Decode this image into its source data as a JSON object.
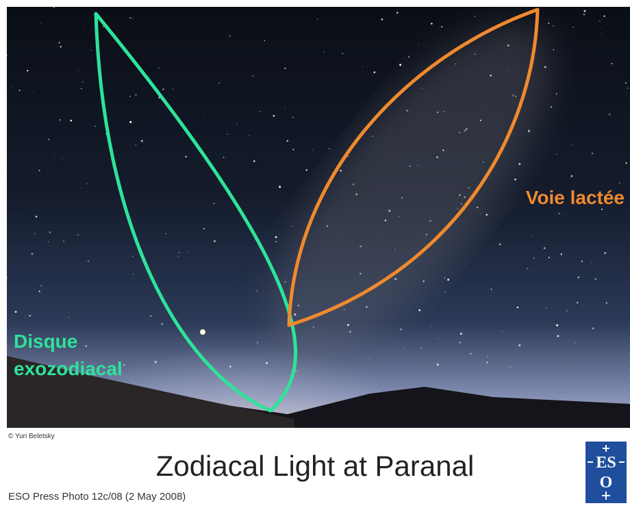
{
  "annotations": {
    "milky_way": "Voie lactée",
    "exozodiacal": [
      "Disque",
      "exozodiacal"
    ]
  },
  "credit": "© Yuri Beletsky",
  "title": "Zodiacal Light at Paranal",
  "caption": "ESO Press Photo 12c/08 (2 May 2008)",
  "logo": [
    "ES",
    "O"
  ]
}
